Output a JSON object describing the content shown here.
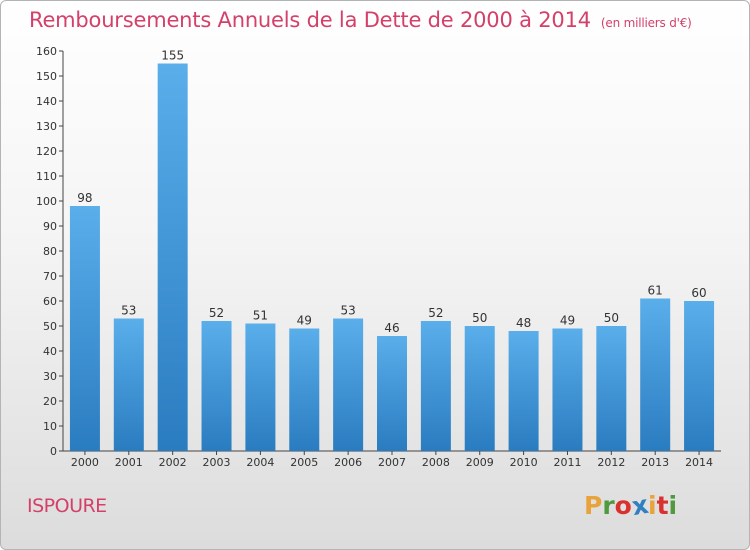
{
  "header": {
    "title": "Remboursements Annuels de la Dette de 2000 à 2014",
    "unit": "(en milliers d'€)"
  },
  "footer": {
    "city": "ISPOURE",
    "logo": [
      "P",
      "r",
      "o",
      "x",
      "i",
      "t",
      "i"
    ],
    "logo_colors": [
      "#e8a33a",
      "#4e9a3c",
      "#d9312d",
      "#2f7fc1",
      "#e8a33a",
      "#d9312d",
      "#4e9a3c"
    ]
  },
  "chart_data": {
    "type": "bar",
    "title": "Remboursements Annuels de la Dette de 2000 à 2014",
    "subtitle": "(en milliers d'€)",
    "categories": [
      "2000",
      "2001",
      "2002",
      "2003",
      "2004",
      "2005",
      "2006",
      "2007",
      "2008",
      "2009",
      "2010",
      "2011",
      "2012",
      "2013",
      "2014"
    ],
    "values": [
      98,
      53,
      155,
      52,
      51,
      49,
      53,
      46,
      52,
      50,
      48,
      49,
      50,
      61,
      60
    ],
    "ylim": [
      0,
      160
    ],
    "yticks": [
      0,
      10,
      20,
      30,
      40,
      50,
      60,
      70,
      80,
      90,
      100,
      110,
      120,
      130,
      140,
      150,
      160
    ],
    "grid": false,
    "bar_color": "#4a9fe0",
    "bar_color_dark": "#2a7dc2"
  }
}
